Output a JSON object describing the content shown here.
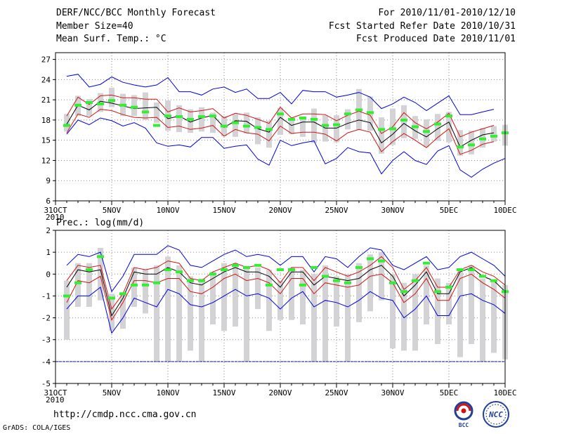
{
  "header": {
    "title": "DERF/NCC/BCC Monthly Forecast",
    "member_size": "Member Size=40",
    "variable": "Mean Surf. Temp.: °C",
    "period": "For 2010/11/01-2010/12/10",
    "started": "Fcst Started Refer Date 2010/10/31",
    "produced": "Fcst Produced Date 2010/11/01"
  },
  "footer": {
    "url": "http://cmdp.ncc.cma.gov.cn",
    "credit": "GrADS: COLA/IGES",
    "logo_left_text": "BCC",
    "logo_right_text": "NCC"
  },
  "colors": {
    "spread_bar": "#d3d3d6",
    "obs_marker": "#33ee33",
    "ensemble_mean": "#000000",
    "std_band": "#d11313",
    "min_max": "#0000dd",
    "baseline": "#1a1a99",
    "grid": "#8a8a8a"
  },
  "chart_data": [
    {
      "type": "line",
      "name": "temperature",
      "ylabel": "Mean Surf. Temp.: °C",
      "ylim": [
        6,
        28
      ],
      "yticks": [
        6,
        9,
        12,
        15,
        18,
        21,
        24,
        27
      ],
      "xlim": [
        0,
        40
      ],
      "grid": true,
      "x_ticks": [
        {
          "x": 0,
          "label": "31OCT",
          "sub": "2010"
        },
        {
          "x": 5,
          "label": "5NOV"
        },
        {
          "x": 10,
          "label": "10NOV"
        },
        {
          "x": 15,
          "label": "15NOV"
        },
        {
          "x": 20,
          "label": "20NOV"
        },
        {
          "x": 25,
          "label": "25NOV"
        },
        {
          "x": 30,
          "label": "30NOV"
        },
        {
          "x": 35,
          "label": "5DEC"
        },
        {
          "x": 40,
          "label": "10DEC"
        }
      ],
      "days": [
        1,
        2,
        3,
        4,
        5,
        6,
        7,
        8,
        9,
        10,
        11,
        12,
        13,
        14,
        15,
        16,
        17,
        18,
        19,
        20,
        21,
        22,
        23,
        24,
        25,
        26,
        27,
        28,
        29,
        30,
        31,
        32,
        33,
        34,
        35,
        36,
        37,
        38,
        39,
        40
      ],
      "series": [
        {
          "name": "max",
          "values": [
            24.5,
            24.8,
            22.9,
            23.3,
            24.4,
            23.6,
            23.2,
            22.9,
            23.2,
            24.3,
            22.2,
            22.2,
            21.7,
            22.6,
            22.9,
            22.1,
            22.6,
            21.2,
            21.2,
            22.1,
            20.4,
            22.4,
            22.2,
            22.2,
            21.4,
            21.7,
            22.1,
            21.4,
            19.7,
            20.4,
            21.4,
            20.6,
            19.4,
            20.5,
            21.6,
            18.8,
            18.8,
            19.2,
            19.6,
            null
          ]
        },
        {
          "name": "mean_plus_std",
          "values": [
            18.6,
            21.4,
            20.3,
            21.6,
            21.7,
            21.3,
            21.3,
            21.1,
            21.1,
            19.2,
            19.8,
            19.2,
            19.4,
            19.7,
            18.3,
            19.0,
            18.7,
            18.1,
            17.5,
            19.9,
            18.3,
            18.9,
            18.9,
            18.8,
            17.9,
            18.7,
            19.3,
            18.7,
            16.0,
            17.0,
            19.1,
            17.6,
            16.7,
            17.7,
            19.0,
            15.5,
            16.2,
            16.7,
            17.2,
            null
          ]
        },
        {
          "name": "mean",
          "values": [
            17.4,
            20.2,
            19.5,
            20.8,
            20.5,
            20.1,
            19.7,
            19.8,
            19.9,
            18.2,
            18.6,
            17.7,
            18.3,
            18.7,
            16.9,
            17.9,
            17.8,
            16.7,
            16.2,
            18.4,
            17.2,
            17.7,
            17.7,
            16.8,
            16.8,
            17.5,
            18.0,
            17.6,
            14.6,
            15.9,
            17.5,
            16.4,
            15.5,
            16.7,
            17.7,
            14.0,
            15.0,
            15.8,
            16.1,
            null
          ]
        },
        {
          "name": "mean_minus_std",
          "values": [
            16.1,
            18.9,
            18.4,
            19.6,
            19.4,
            18.8,
            18.4,
            18.3,
            18.4,
            16.9,
            17.1,
            16.6,
            16.8,
            17.2,
            15.6,
            16.6,
            16.1,
            15.9,
            14.9,
            17.1,
            16.0,
            16.2,
            16.2,
            15.9,
            14.9,
            16.1,
            16.6,
            16.2,
            13.3,
            14.8,
            16.0,
            15.0,
            13.9,
            15.4,
            16.7,
            12.9,
            13.5,
            14.4,
            14.8,
            null
          ]
        },
        {
          "name": "min",
          "values": [
            15.9,
            18.0,
            17.3,
            18.3,
            17.9,
            17.1,
            17.6,
            16.8,
            14.6,
            14.1,
            14.3,
            14.0,
            15.4,
            15.4,
            13.8,
            14.1,
            14.3,
            12.2,
            11.3,
            15.0,
            14.2,
            14.6,
            14.9,
            11.5,
            12.3,
            13.9,
            13.3,
            13.1,
            10.0,
            12.0,
            13.3,
            12.0,
            11.4,
            13.4,
            14.2,
            10.6,
            9.5,
            10.7,
            11.6,
            12.3
          ]
        }
      ],
      "spread_boxes": [
        [
          16.3,
          18.9
        ],
        [
          18.6,
          21.6
        ],
        [
          18.6,
          21.1
        ],
        [
          19.2,
          22.0
        ],
        [
          19.9,
          22.8
        ],
        [
          18.6,
          21.9
        ],
        [
          18.6,
          21.7
        ],
        [
          18.0,
          22.1
        ],
        [
          17.6,
          20.6
        ],
        [
          16.4,
          20.9
        ],
        [
          16.2,
          20.2
        ],
        [
          16.1,
          19.6
        ],
        [
          16.3,
          19.9
        ],
        [
          16.1,
          19.1
        ],
        [
          15.6,
          18.6
        ],
        [
          15.5,
          18.9
        ],
        [
          16.0,
          19.1
        ],
        [
          14.4,
          18.4
        ],
        [
          13.9,
          17.9
        ],
        [
          15.8,
          19.8
        ],
        [
          15.9,
          17.9
        ],
        [
          15.5,
          18.1
        ],
        [
          14.6,
          19.7
        ],
        [
          14.8,
          18.7
        ],
        [
          14.7,
          18.7
        ],
        [
          16.6,
          19.6
        ],
        [
          16.5,
          22.6
        ],
        [
          16.4,
          21.5
        ],
        [
          13.0,
          18.4
        ],
        [
          14.3,
          19.7
        ],
        [
          15.3,
          20.2
        ],
        [
          15.2,
          18.6
        ],
        [
          14.0,
          18.1
        ],
        [
          14.9,
          18.9
        ],
        [
          14.7,
          19.2
        ],
        [
          12.7,
          16.5
        ],
        [
          12.9,
          16.4
        ],
        [
          13.9,
          16.8
        ],
        [
          14.8,
          17.1
        ],
        [
          14.2,
          17.3
        ]
      ],
      "observed": [
        17.2,
        20.2,
        20.6,
        20.4,
        20.9,
        20.2,
        19.9,
        19.2,
        17.2,
        18.6,
        18.5,
        18.1,
        18.5,
        18.6,
        17.1,
        17.6,
        17.1,
        16.9,
        16.6,
        18.9,
        18.1,
        18.3,
        18.1,
        17.2,
        17.3,
        18.9,
        19.5,
        19.1,
        16.6,
        16.7,
        18.0,
        17.0,
        16.3,
        17.4,
        18.6,
        14.0,
        14.3,
        15.2,
        15.6,
        16.1
      ]
    },
    {
      "type": "line",
      "name": "precipitation",
      "ylabel": "Prec.: log(mm/d)",
      "ylim": [
        -5,
        2
      ],
      "yticks": [
        -5,
        -4,
        -3,
        -2,
        -1,
        0,
        1,
        2
      ],
      "xlim": [
        0,
        40
      ],
      "grid": true,
      "x_ticks": [
        {
          "x": 0,
          "label": "31OCT",
          "sub": "2010"
        },
        {
          "x": 5,
          "label": "5NOV"
        },
        {
          "x": 10,
          "label": "10NOV"
        },
        {
          "x": 15,
          "label": "15NOV"
        },
        {
          "x": 20,
          "label": "20NOV"
        },
        {
          "x": 25,
          "label": "25NOV"
        },
        {
          "x": 30,
          "label": "30NOV"
        },
        {
          "x": 35,
          "label": "5DEC"
        },
        {
          "x": 40,
          "label": "10DEC"
        }
      ],
      "days": [
        1,
        2,
        3,
        4,
        5,
        6,
        7,
        8,
        9,
        10,
        11,
        12,
        13,
        14,
        15,
        16,
        17,
        18,
        19,
        20,
        21,
        22,
        23,
        24,
        25,
        26,
        27,
        28,
        29,
        30,
        31,
        32,
        33,
        34,
        35,
        36,
        37,
        38,
        39,
        40
      ],
      "series": [
        {
          "name": "max",
          "values": [
            0.4,
            0.9,
            0.8,
            1.0,
            -0.8,
            -0.1,
            0.9,
            0.9,
            0.9,
            1.3,
            1.1,
            0.4,
            0.3,
            0.6,
            0.9,
            1.1,
            0.8,
            0.9,
            0.8,
            0.4,
            0.8,
            0.8,
            0.1,
            0.8,
            0.7,
            0.3,
            0.8,
            1.2,
            1.1,
            0.4,
            0.2,
            0.5,
            0.8,
            0.2,
            0.3,
            0.8,
            1.0,
            0.7,
            0.4,
            -0.1
          ]
        },
        {
          "name": "mean_plus_std",
          "values": [
            -0.3,
            0.4,
            0.3,
            0.4,
            -1.6,
            -0.9,
            0.3,
            0.2,
            0.3,
            0.6,
            0.5,
            -0.2,
            -0.3,
            0.1,
            0.3,
            0.5,
            0.3,
            0.4,
            0.2,
            -0.4,
            0.3,
            0.3,
            -0.3,
            0.3,
            0.1,
            -0.1,
            0.1,
            0.4,
            0.8,
            0.3,
            -0.7,
            -0.3,
            0.3,
            -0.6,
            -0.6,
            0.2,
            0.4,
            0.1,
            -0.1,
            -0.5
          ]
        },
        {
          "name": "mean",
          "values": [
            -0.6,
            0.2,
            0.1,
            0.2,
            -1.9,
            -1.1,
            0.1,
            0.0,
            0.0,
            0.3,
            0.1,
            -0.4,
            -0.5,
            -0.2,
            0.1,
            0.3,
            0.1,
            0.1,
            -0.1,
            -0.6,
            0.1,
            0.1,
            -0.5,
            -0.1,
            -0.2,
            -0.3,
            -0.2,
            0.2,
            0.4,
            -0.1,
            -1.0,
            -0.5,
            0.1,
            -0.9,
            -0.9,
            0.1,
            0.3,
            -0.1,
            -0.3,
            -0.8
          ]
        },
        {
          "name": "mean_minus_std",
          "values": [
            -1.3,
            -0.3,
            -0.4,
            -0.1,
            -2.1,
            -1.3,
            -0.3,
            -0.3,
            -0.4,
            -0.2,
            -0.2,
            -0.8,
            -0.9,
            -0.6,
            -0.2,
            0.0,
            -0.3,
            -0.2,
            -0.4,
            -0.9,
            -0.2,
            -0.2,
            -0.9,
            -0.4,
            -0.5,
            -0.6,
            -0.5,
            -0.1,
            0.0,
            -0.4,
            -1.3,
            -0.9,
            -0.2,
            -1.2,
            -1.2,
            -0.2,
            0.0,
            -0.4,
            -0.7,
            -1.1
          ]
        },
        {
          "name": "min",
          "values": [
            -1.6,
            -1.0,
            -1.0,
            -0.6,
            -2.7,
            -2.0,
            -1.1,
            -1.3,
            -1.5,
            -0.7,
            -0.9,
            -1.4,
            -1.5,
            -1.3,
            -1.0,
            -0.7,
            -1.0,
            -0.9,
            -1.1,
            -1.6,
            -1.1,
            -0.8,
            -1.5,
            -1.2,
            -1.3,
            -1.5,
            -1.2,
            -0.8,
            -1.1,
            -1.2,
            -2.0,
            -1.6,
            -1.0,
            -1.9,
            -1.9,
            -1.0,
            -0.9,
            -1.2,
            -1.4,
            -1.8
          ]
        }
      ],
      "spread_boxes": [
        [
          -3.0,
          -0.3
        ],
        [
          -1.5,
          0.5
        ],
        [
          -1.5,
          0.5
        ],
        [
          -1.2,
          1.2
        ],
        [
          -2.6,
          -0.9
        ],
        [
          -2.5,
          -0.9
        ],
        [
          -1.5,
          0.3
        ],
        [
          -1.8,
          0.2
        ],
        [
          -4.0,
          0.4
        ],
        [
          -4.0,
          0.8
        ],
        [
          -4.0,
          0.4
        ],
        [
          -3.5,
          -0.1
        ],
        [
          -4.0,
          -0.2
        ],
        [
          -2.3,
          0.1
        ],
        [
          -2.6,
          0.5
        ],
        [
          -2.4,
          0.5
        ],
        [
          -4.0,
          0.3
        ],
        [
          -1.6,
          0.3
        ],
        [
          -2.6,
          0.2
        ],
        [
          -2.1,
          -0.3
        ],
        [
          -2.1,
          0.3
        ],
        [
          -2.3,
          0.2
        ],
        [
          -4.0,
          0.0
        ],
        [
          -4.0,
          0.4
        ],
        [
          -2.4,
          -0.1
        ],
        [
          -4.0,
          0.0
        ],
        [
          -2.2,
          0.5
        ],
        [
          -1.7,
          0.9
        ],
        [
          -1.2,
          1.0
        ],
        [
          -3.4,
          0.0
        ],
        [
          -3.5,
          -0.4
        ],
        [
          -3.5,
          0.0
        ],
        [
          -2.3,
          0.4
        ],
        [
          -3.2,
          -0.2
        ],
        [
          -2.3,
          -0.4
        ],
        [
          -3.8,
          0.1
        ],
        [
          -3.2,
          0.4
        ],
        [
          -4.0,
          -0.2
        ],
        [
          -3.6,
          -0.3
        ],
        [
          -3.9,
          -0.5
        ]
      ],
      "observed": [
        -1.0,
        -0.4,
        0.2,
        0.8,
        -1.1,
        -0.9,
        -0.5,
        -0.5,
        -0.4,
        0.2,
        0.1,
        -0.3,
        -0.3,
        0.0,
        0.2,
        0.4,
        0.3,
        0.4,
        -0.5,
        0.2,
        0.2,
        -0.5,
        0.3,
        -0.1,
        -0.3,
        -0.4,
        0.3,
        0.7,
        0.6,
        -0.4,
        -0.8,
        -0.3,
        0.5,
        -0.8,
        -0.6,
        0.2,
        0.2,
        -0.1,
        -0.3,
        -0.8
      ],
      "reference_line": -4
    }
  ]
}
